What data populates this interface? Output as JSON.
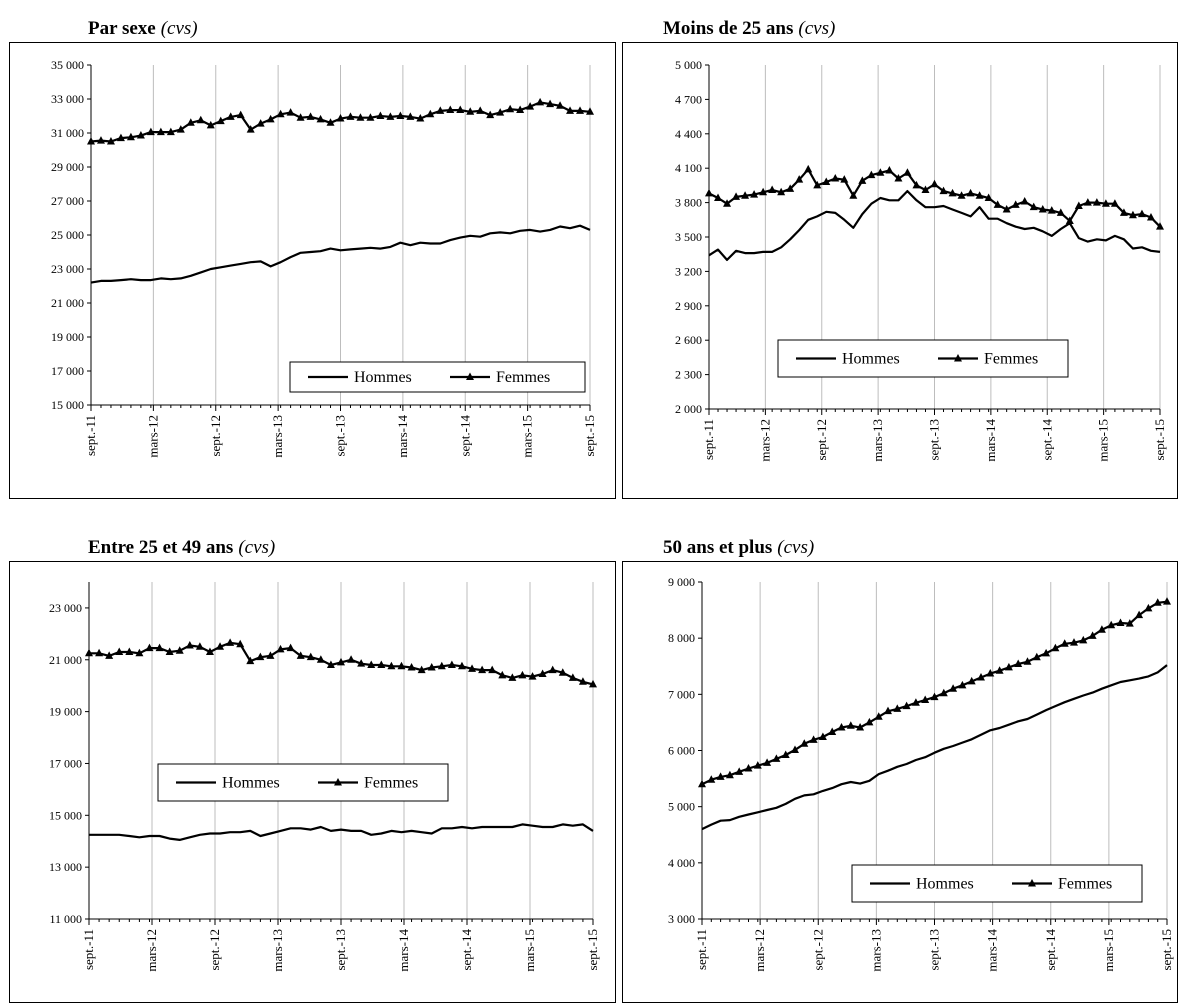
{
  "chart_data": [
    {
      "type": "line",
      "title": "Par sexe",
      "subtitle": "(cvs)",
      "ylim": [
        15000,
        35000
      ],
      "yticks": [
        15000,
        17000,
        19000,
        21000,
        23000,
        25000,
        27000,
        29000,
        31000,
        33000,
        35000
      ],
      "ytick_labels": [
        "15 000",
        "17 000",
        "19 000",
        "21 000",
        "23 000",
        "25 000",
        "27 000",
        "29 000",
        "31 000",
        "33 000",
        "35 000"
      ],
      "xtick_labels": [
        "sept.-11",
        "mars-12",
        "sept.-12",
        "mars-13",
        "sept.-13",
        "mars-14",
        "sept.-14",
        "mars-15",
        "sept.-15"
      ],
      "grid": "vertical",
      "legend_position": "bottom-right",
      "series": [
        {
          "name": "Hommes",
          "marker": "none",
          "values": [
            22200,
            22300,
            22300,
            22350,
            22400,
            22350,
            22350,
            22450,
            22400,
            22450,
            22600,
            22800,
            23000,
            23100,
            23200,
            23300,
            23400,
            23450,
            23150,
            23400,
            23700,
            23950,
            24000,
            24050,
            24200,
            24100,
            24150,
            24200,
            24250,
            24200,
            24300,
            24550,
            24400,
            24550,
            24500,
            24500,
            24700,
            24850,
            24950,
            24900,
            25100,
            25150,
            25100,
            25250,
            25300,
            25200,
            25300,
            25500,
            25400,
            25550,
            25300
          ]
        },
        {
          "name": "Femmes",
          "marker": "triangle",
          "values": [
            30500,
            30550,
            30500,
            30700,
            30750,
            30850,
            31050,
            31050,
            31050,
            31200,
            31600,
            31750,
            31450,
            31700,
            31950,
            32050,
            31200,
            31550,
            31800,
            32100,
            32200,
            31900,
            31950,
            31800,
            31600,
            31850,
            31950,
            31900,
            31900,
            32000,
            31950,
            32000,
            31950,
            31850,
            32100,
            32300,
            32350,
            32350,
            32250,
            32300,
            32050,
            32200,
            32400,
            32350,
            32550,
            32800,
            32700,
            32600,
            32300,
            32300,
            32250
          ]
        }
      ]
    },
    {
      "type": "line",
      "title": "Moins de 25 ans",
      "subtitle": "(cvs)",
      "ylim": [
        2000,
        5000
      ],
      "yticks": [
        2000,
        2300,
        2600,
        2900,
        3200,
        3500,
        3800,
        4100,
        4400,
        4700,
        5000
      ],
      "ytick_labels": [
        "2 000",
        "2 300",
        "2 600",
        "2 900",
        "3 200",
        "3 500",
        "3 800",
        "4 100",
        "4 400",
        "4 700",
        "5 000"
      ],
      "xtick_labels": [
        "sept.-11",
        "mars-12",
        "sept.-12",
        "mars-13",
        "sept.-13",
        "mars-14",
        "sept.-14",
        "mars-15",
        "sept.-15"
      ],
      "grid": "vertical",
      "legend_position": "center",
      "series": [
        {
          "name": "Hommes",
          "marker": "none",
          "values": [
            3340,
            3390,
            3300,
            3380,
            3360,
            3360,
            3370,
            3370,
            3410,
            3480,
            3560,
            3650,
            3680,
            3720,
            3710,
            3650,
            3580,
            3700,
            3790,
            3840,
            3820,
            3820,
            3900,
            3820,
            3760,
            3760,
            3770,
            3740,
            3710,
            3680,
            3760,
            3660,
            3660,
            3620,
            3590,
            3570,
            3580,
            3550,
            3510,
            3570,
            3620,
            3490,
            3460,
            3480,
            3470,
            3510,
            3480,
            3400,
            3410,
            3380,
            3370
          ]
        },
        {
          "name": "Femmes",
          "marker": "triangle",
          "values": [
            3880,
            3840,
            3790,
            3850,
            3860,
            3870,
            3890,
            3910,
            3890,
            3920,
            4000,
            4090,
            3950,
            3980,
            4010,
            4000,
            3860,
            3990,
            4040,
            4060,
            4080,
            4010,
            4060,
            3950,
            3910,
            3960,
            3900,
            3880,
            3860,
            3880,
            3860,
            3840,
            3780,
            3740,
            3780,
            3810,
            3760,
            3740,
            3730,
            3710,
            3640,
            3770,
            3800,
            3800,
            3790,
            3790,
            3710,
            3690,
            3700,
            3670,
            3590
          ]
        }
      ]
    },
    {
      "type": "line",
      "title": "Entre 25 et 49 ans",
      "subtitle": "(cvs)",
      "ylim": [
        11000,
        24000
      ],
      "yticks": [
        11000,
        13000,
        15000,
        17000,
        19000,
        21000,
        23000
      ],
      "ytick_labels": [
        "11 000",
        "13 000",
        "15 000",
        "17 000",
        "19 000",
        "21 000",
        "23 000"
      ],
      "xtick_labels": [
        "sept.-11",
        "mars-12",
        "sept.-12",
        "mars-13",
        "sept.-13",
        "mars-14",
        "sept.-14",
        "mars-15",
        "sept.-15"
      ],
      "grid": "vertical",
      "legend_position": "center",
      "series": [
        {
          "name": "Hommes",
          "marker": "none",
          "values": [
            14250,
            14250,
            14250,
            14250,
            14200,
            14150,
            14200,
            14200,
            14100,
            14050,
            14150,
            14250,
            14300,
            14300,
            14350,
            14350,
            14400,
            14200,
            14300,
            14400,
            14500,
            14500,
            14450,
            14550,
            14400,
            14450,
            14400,
            14400,
            14250,
            14300,
            14400,
            14350,
            14400,
            14350,
            14300,
            14500,
            14500,
            14550,
            14500,
            14550,
            14550,
            14550,
            14550,
            14650,
            14600,
            14550,
            14550,
            14650,
            14600,
            14650,
            14400
          ]
        },
        {
          "name": "Femmes",
          "marker": "triangle",
          "values": [
            21250,
            21250,
            21150,
            21300,
            21300,
            21250,
            21450,
            21450,
            21300,
            21350,
            21550,
            21500,
            21300,
            21500,
            21650,
            21600,
            20950,
            21100,
            21150,
            21400,
            21450,
            21150,
            21100,
            21000,
            20800,
            20900,
            21000,
            20850,
            20800,
            20800,
            20750,
            20750,
            20700,
            20600,
            20700,
            20750,
            20800,
            20750,
            20650,
            20600,
            20600,
            20400,
            20300,
            20400,
            20350,
            20450,
            20600,
            20500,
            20300,
            20150,
            20050
          ]
        }
      ]
    },
    {
      "type": "line",
      "title": "50 ans et plus",
      "subtitle": "(cvs)",
      "ylim": [
        3000,
        9000
      ],
      "yticks": [
        3000,
        4000,
        5000,
        6000,
        7000,
        8000,
        9000
      ],
      "ytick_labels": [
        "3 000",
        "4 000",
        "5 000",
        "6 000",
        "7 000",
        "8 000",
        "9 000"
      ],
      "xtick_labels": [
        "sept.-11",
        "mars-12",
        "sept.-12",
        "mars-13",
        "sept.-13",
        "mars-14",
        "sept.-14",
        "mars-15",
        "sept.-15"
      ],
      "grid": "vertical",
      "legend_position": "bottom-right",
      "series": [
        {
          "name": "Hommes",
          "marker": "none",
          "values": [
            4600,
            4680,
            4750,
            4760,
            4820,
            4860,
            4900,
            4940,
            4980,
            5050,
            5140,
            5200,
            5220,
            5280,
            5330,
            5400,
            5440,
            5410,
            5460,
            5580,
            5640,
            5710,
            5760,
            5830,
            5880,
            5960,
            6030,
            6080,
            6140,
            6200,
            6280,
            6360,
            6400,
            6460,
            6520,
            6560,
            6640,
            6720,
            6790,
            6860,
            6920,
            6980,
            7030,
            7100,
            7160,
            7220,
            7250,
            7280,
            7320,
            7390,
            7520
          ]
        },
        {
          "name": "Femmes",
          "marker": "triangle",
          "values": [
            5400,
            5480,
            5530,
            5560,
            5620,
            5680,
            5730,
            5780,
            5850,
            5920,
            6010,
            6120,
            6190,
            6240,
            6330,
            6410,
            6440,
            6410,
            6500,
            6600,
            6700,
            6740,
            6790,
            6850,
            6900,
            6950,
            7020,
            7100,
            7160,
            7230,
            7300,
            7370,
            7420,
            7480,
            7540,
            7580,
            7660,
            7730,
            7820,
            7900,
            7920,
            7960,
            8040,
            8150,
            8230,
            8270,
            8260,
            8410,
            8530,
            8630,
            8650
          ]
        }
      ]
    }
  ]
}
